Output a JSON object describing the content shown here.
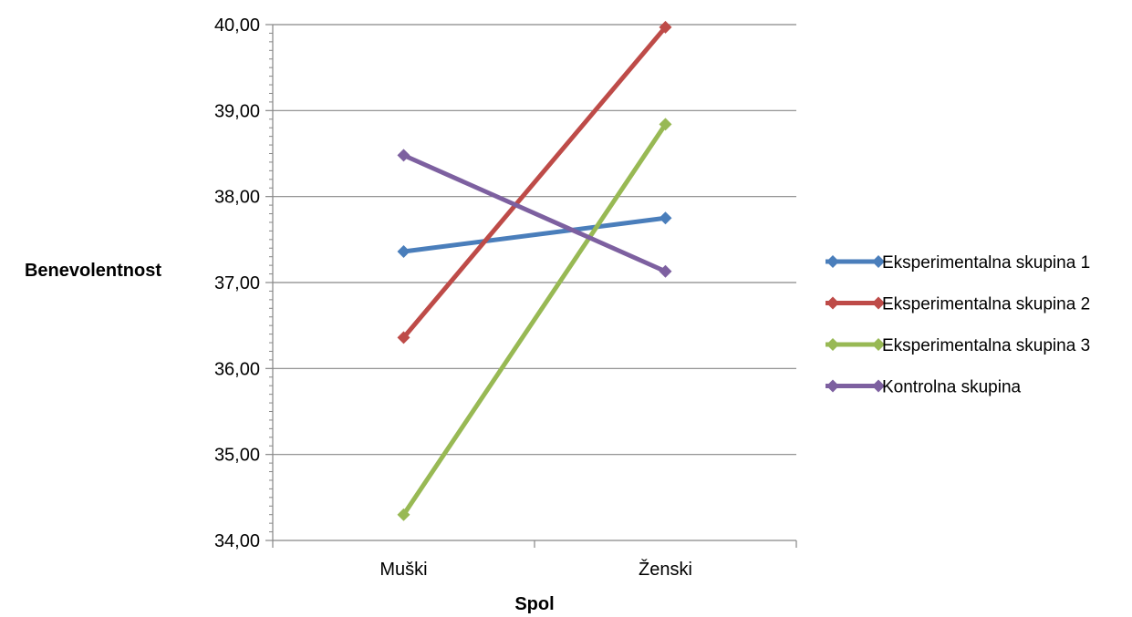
{
  "chart_data": {
    "type": "line",
    "title": "",
    "xlabel": "Spol",
    "ylabel": "Benevolentnost",
    "categories": [
      "Muški",
      "Ženski"
    ],
    "ylim": [
      34,
      40
    ],
    "ytick_step": 1,
    "ytick_labels": [
      "34,00",
      "35,00",
      "36,00",
      "37,00",
      "38,00",
      "39,00",
      "40,00"
    ],
    "grid": "horizontal major",
    "legend_position": "right",
    "series": [
      {
        "name": "Eksperimentalna skupina 1",
        "values": [
          37.36,
          37.75
        ],
        "color": "#4A7EBB"
      },
      {
        "name": "Eksperimentalna skupina 2",
        "values": [
          36.36,
          39.97
        ],
        "color": "#BE4B48"
      },
      {
        "name": "Eksperimentalna skupina 3",
        "values": [
          34.3,
          38.84
        ],
        "color": "#98B954"
      },
      {
        "name": "Kontrolna skupina",
        "values": [
          38.48,
          37.13
        ],
        "color": "#7D60A0"
      }
    ]
  }
}
